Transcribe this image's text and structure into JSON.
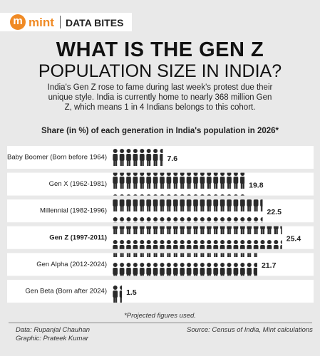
{
  "header": {
    "logo_mark": "m",
    "logo_text": "mint",
    "section": "DATA BITES"
  },
  "chart_data": {
    "type": "pictogram-bar",
    "title": [
      "WHAT IS THE GEN Z",
      "POPULATION SIZE IN INDIA?"
    ],
    "description": "India's Gen Z rose to fame during last week's protest due their unique style. India is currently home to nearly 368 million Gen Z, which means 1 in 4 Indians belongs to this cohort.",
    "subtitle": "Share (in %) of each generation in India's population in 2026*",
    "categories": [
      "Baby Boomer (Born before 1964)",
      "Gen X (1962-1981)",
      "Millennial (1982-1996)",
      "Gen Z (1997-2011)",
      "Gen Alpha (2012-2024)",
      "Gen Beta (Born after 2024)"
    ],
    "values": [
      7.6,
      19.8,
      22.5,
      25.4,
      21.7,
      1.5
    ],
    "color": "#2a2a2a",
    "highlight_color": "#2e9ad6",
    "highlight_index": 3,
    "note": "*Projected figures used.",
    "credits": [
      "Data: Rupanjal Chauhan",
      "Graphic: Prateek Kumar"
    ],
    "source": "Source: Census of India, Mint calculations"
  }
}
